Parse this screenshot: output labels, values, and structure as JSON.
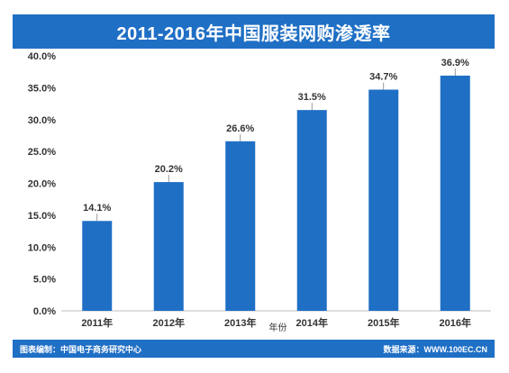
{
  "title": "2011-2016年中国服装网购渗透率",
  "footer": {
    "left": "图表编制：中国电子商务研究中心",
    "right": "数据来源：WWW.100EC.CN"
  },
  "colors": {
    "bar": "#1f6fc5",
    "header": "#1f6fc5"
  },
  "chart_data": {
    "type": "bar",
    "title": "2011-2016年中国服装网购渗透率",
    "xlabel": "年份",
    "ylabel": "",
    "categories": [
      "2011年",
      "2012年",
      "2013年",
      "2014年",
      "2015年",
      "2016年"
    ],
    "values": [
      14.1,
      20.2,
      26.6,
      31.5,
      34.7,
      36.9
    ],
    "value_labels": [
      "14.1%",
      "20.2%",
      "26.6%",
      "31.5%",
      "34.7%",
      "36.9%"
    ],
    "ylim": [
      0,
      40
    ],
    "yticks": [
      0,
      5,
      10,
      15,
      20,
      25,
      30,
      35,
      40
    ],
    "ytick_labels": [
      "0.0%",
      "5.0%",
      "10.0%",
      "15.0%",
      "20.0%",
      "25.0%",
      "30.0%",
      "35.0%",
      "40.0%"
    ],
    "grid": false,
    "legend": "none"
  }
}
